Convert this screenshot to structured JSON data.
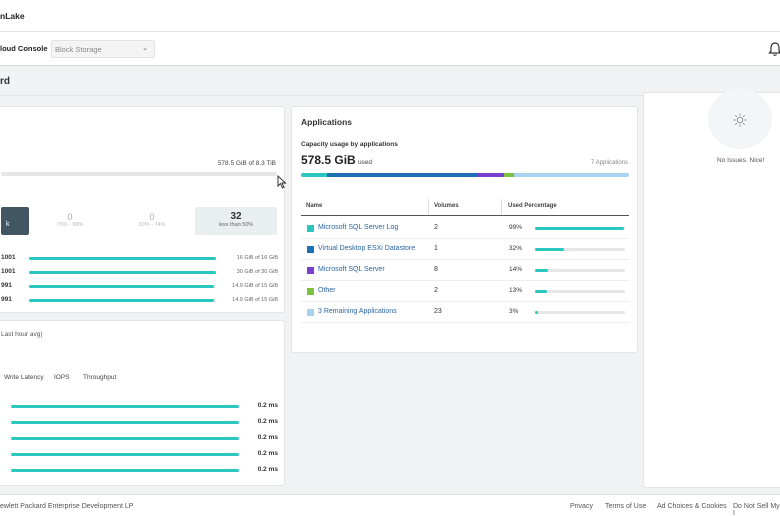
{
  "brand": "nLake",
  "nav": {
    "title": "loud Console",
    "service": "Block Storage"
  },
  "page": {
    "title": "rd"
  },
  "capacity": {
    "used_text": "578.5 GiB of 8.3 TiB",
    "buckets": [
      {
        "count": "",
        "range": ""
      },
      {
        "count": "0",
        "range": "75% - 99%"
      },
      {
        "count": "0",
        "range": "50% - 74%"
      },
      {
        "count": "32",
        "range": "less than 50%"
      }
    ],
    "rows": [
      {
        "name": "1001",
        "value": "16 GiB of 16 GiB",
        "pct": 1.0
      },
      {
        "name": "1001",
        "value": "30 GiB of 30 GiB",
        "pct": 1.0
      },
      {
        "name": "991",
        "value": "14.9 GiB of 15 GiB",
        "pct": 0.99
      },
      {
        "name": "991",
        "value": "14.9 GiB of 15 GiB",
        "pct": 0.99
      }
    ]
  },
  "performance": {
    "subtitle": "Last hour avg)",
    "tabs": [
      "Write Latency",
      "IOPS",
      "Throughput"
    ],
    "rows": [
      {
        "value": "0.2 ms",
        "pct": 1.0
      },
      {
        "value": "0.2 ms",
        "pct": 1.0
      },
      {
        "value": "0.2 ms",
        "pct": 1.0
      },
      {
        "value": "0.2 ms",
        "pct": 1.0
      },
      {
        "value": "0.2 ms",
        "pct": 1.0
      }
    ]
  },
  "applications": {
    "title": "Applications",
    "subtitle": "Capacity usage by applications",
    "total": "578.5 GiB",
    "total_suffix": "used",
    "count_label": "7 Applications",
    "segments": [
      {
        "pct": 0.08,
        "color": "#2ac7c1"
      },
      {
        "pct": 0.46,
        "color": "#1f6fb5"
      },
      {
        "pct": 0.08,
        "color": "#7b3fcf"
      },
      {
        "pct": 0.03,
        "color": "#7dc142"
      },
      {
        "pct": 0.35,
        "color": "#a9d4f1"
      }
    ],
    "headers": {
      "name": "Name",
      "volumes": "Volumes",
      "used": "Used Percentage"
    },
    "rows": [
      {
        "name": "Microsoft SQL Server Log",
        "volumes": "2",
        "used": "99%",
        "pct": 0.99,
        "color": "#2ac7c1"
      },
      {
        "name": "Virtual Desktop ESXi Datastore",
        "volumes": "1",
        "used": "32%",
        "pct": 0.32,
        "color": "#1f6fb5"
      },
      {
        "name": "Microsoft SQL Server",
        "volumes": "8",
        "used": "14%",
        "pct": 0.14,
        "color": "#7b3fcf"
      },
      {
        "name": "Other",
        "volumes": "2",
        "used": "13%",
        "pct": 0.13,
        "color": "#7dc142"
      },
      {
        "name": "3 Remaining Applications",
        "volumes": "23",
        "used": "3%",
        "pct": 0.03,
        "color": "#a9d4f1"
      }
    ]
  },
  "issues": {
    "text": "No Issues. Nice!"
  },
  "footer": {
    "copyright": "ewlett Packard Enterprise Development LP",
    "links": [
      "Privacy",
      "Terms of Use",
      "Ad Choices & Cookies",
      "Do Not Sell My I"
    ]
  }
}
